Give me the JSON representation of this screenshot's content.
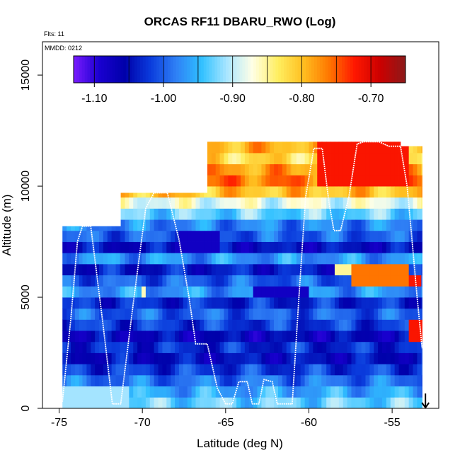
{
  "chart_data": {
    "type": "heatmap",
    "title": "ORCAS RF11 DBARU_RWO (Log)",
    "flights_label": "Flts: 11",
    "date_label": "MMDD: 0212",
    "xlabel": "Latitude (deg N)",
    "ylabel": "Altitude (m)",
    "xlim": [
      -76,
      -52.2
    ],
    "ylim": [
      0,
      16500
    ],
    "x_ticks": [
      -75,
      -70,
      -65,
      -60,
      -55
    ],
    "x_tick_labels": [
      "-75",
      "-70",
      "-65",
      "-60",
      "-55"
    ],
    "y_ticks": [
      0,
      5000,
      10000,
      15000
    ],
    "y_tick_labels": [
      "0",
      "5000",
      "10000",
      "15000"
    ],
    "colorbar": {
      "min": -1.13,
      "max": -0.65,
      "ticks": [
        -1.1,
        -1.0,
        -0.9,
        -0.8,
        -0.7
      ],
      "tick_labels": [
        "-1.10",
        "-1.00",
        "-0.90",
        "-0.80",
        "-0.70"
      ],
      "colors": [
        "#7a1bff",
        "#1a00d0",
        "#0000aa",
        "#0a3bdc",
        "#2f7ff5",
        "#2fc0ff",
        "#a9e6ff",
        "#ffffe6",
        "#ffee60",
        "#ffbf20",
        "#ff7700",
        "#ff1800",
        "#cc0000",
        "#8b1a1a"
      ]
    },
    "arrow_marker_lat": -53,
    "flight_track": [
      [
        -74.8,
        300
      ],
      [
        -74.3,
        4000
      ],
      [
        -73.9,
        7500
      ],
      [
        -73.6,
        8200
      ],
      [
        -73.1,
        8200
      ],
      [
        -72.4,
        4000
      ],
      [
        -71.8,
        200
      ],
      [
        -71.3,
        200
      ],
      [
        -70.5,
        5000
      ],
      [
        -69.8,
        9000
      ],
      [
        -69.3,
        9700
      ],
      [
        -68.5,
        9700
      ],
      [
        -67.8,
        7600
      ],
      [
        -67.2,
        5000
      ],
      [
        -66.8,
        2900
      ],
      [
        -66.1,
        2900
      ],
      [
        -65.5,
        900
      ],
      [
        -65.0,
        200
      ],
      [
        -64.6,
        200
      ],
      [
        -64.2,
        1200
      ],
      [
        -63.7,
        1200
      ],
      [
        -63.4,
        200
      ],
      [
        -63.0,
        200
      ],
      [
        -62.7,
        1300
      ],
      [
        -62.2,
        1200
      ],
      [
        -61.9,
        200
      ],
      [
        -61.4,
        200
      ],
      [
        -61.0,
        200
      ],
      [
        -60.6,
        5000
      ],
      [
        -60.2,
        9500
      ],
      [
        -59.7,
        11700
      ],
      [
        -59.2,
        11700
      ],
      [
        -58.8,
        9300
      ],
      [
        -58.5,
        8000
      ],
      [
        -58.1,
        8000
      ],
      [
        -57.6,
        9500
      ],
      [
        -57.1,
        11900
      ],
      [
        -56.7,
        12000
      ],
      [
        -55.8,
        12000
      ],
      [
        -55.2,
        11800
      ],
      [
        -54.5,
        11800
      ],
      [
        -54.1,
        10000
      ],
      [
        -53.8,
        7500
      ],
      [
        -53.5,
        5000
      ],
      [
        -53.2,
        2700
      ]
    ],
    "profiles": [
      {
        "lat0": -74.8,
        "lat1": -73.6,
        "alt_top": 8200
      },
      {
        "lat0": -73.6,
        "lat1": -71.3,
        "alt_top": 8200
      },
      {
        "lat0": -71.3,
        "lat1": -69.3,
        "alt_top": 9700
      },
      {
        "lat0": -69.3,
        "lat1": -66.1,
        "alt_top": 9700
      },
      {
        "lat0": -66.1,
        "lat1": -61.0,
        "alt_top": 12000
      },
      {
        "lat0": -61.0,
        "lat1": -59.2,
        "alt_top": 12000
      },
      {
        "lat0": -59.2,
        "lat1": -57.1,
        "alt_top": 12000
      },
      {
        "lat0": -57.1,
        "lat1": -54.5,
        "alt_top": 12000
      },
      {
        "lat0": -54.5,
        "lat1": -53.2,
        "alt_top": 11800
      }
    ],
    "layers": [
      {
        "alt0": 0,
        "alt1": 500,
        "value": -0.93
      },
      {
        "alt0": 500,
        "alt1": 1000,
        "value": -0.96
      },
      {
        "alt0": 1000,
        "alt1": 1500,
        "value": -0.99
      },
      {
        "alt0": 1500,
        "alt1": 2000,
        "value": -1.02
      },
      {
        "alt0": 2000,
        "alt1": 2500,
        "value": -1.05
      },
      {
        "alt0": 2500,
        "alt1": 3000,
        "value": -1.03
      },
      {
        "alt0": 3000,
        "alt1": 3500,
        "value": -1.06
      },
      {
        "alt0": 3500,
        "alt1": 4000,
        "value": -1.02
      },
      {
        "alt0": 4000,
        "alt1": 4500,
        "value": -1.0
      },
      {
        "alt0": 4500,
        "alt1": 5000,
        "value": -1.03
      },
      {
        "alt0": 5000,
        "alt1": 5500,
        "value": -0.97
      },
      {
        "alt0": 5500,
        "alt1": 6000,
        "value": -1.0
      },
      {
        "alt0": 6000,
        "alt1": 6500,
        "value": -1.04
      },
      {
        "alt0": 6500,
        "alt1": 7000,
        "value": -0.97
      },
      {
        "alt0": 7000,
        "alt1": 7500,
        "value": -1.05
      },
      {
        "alt0": 7500,
        "alt1": 8000,
        "value": -1.0
      },
      {
        "alt0": 8000,
        "alt1": 8500,
        "value": -0.98
      },
      {
        "alt0": 8500,
        "alt1": 9000,
        "value": -0.93
      },
      {
        "alt0": 9000,
        "alt1": 9500,
        "value": -0.88
      },
      {
        "alt0": 9500,
        "alt1": 10000,
        "value": -0.8
      },
      {
        "alt0": 10000,
        "alt1": 10500,
        "value": -0.76
      },
      {
        "alt0": 10500,
        "alt1": 11000,
        "value": -0.78
      },
      {
        "alt0": 11000,
        "alt1": 11500,
        "value": -0.82
      },
      {
        "alt0": 11500,
        "alt1": 12000,
        "value": -0.79
      }
    ],
    "anomalies": [
      {
        "lat0": -57.5,
        "lat1": -54.2,
        "alt0": 5500,
        "alt1": 6500,
        "value": -0.76
      },
      {
        "lat0": -58.5,
        "lat1": -57.5,
        "alt0": 5800,
        "alt1": 6300,
        "value": -0.85
      },
      {
        "lat0": -59.5,
        "lat1": -54.0,
        "alt0": 10000,
        "alt1": 12000,
        "value": -0.72
      },
      {
        "lat0": -54.0,
        "lat1": -53.2,
        "alt0": 3000,
        "alt1": 3600,
        "value": -0.72
      },
      {
        "lat0": -54.0,
        "lat1": -53.3,
        "alt0": 5500,
        "alt1": 6000,
        "value": -0.72
      },
      {
        "lat0": -70.2,
        "lat1": -69.8,
        "alt0": 5000,
        "alt1": 5400,
        "value": -0.86
      },
      {
        "lat0": -68.0,
        "lat1": -65.5,
        "alt0": 6800,
        "alt1": 7600,
        "value": -1.08
      },
      {
        "lat0": -63.5,
        "lat1": -60.0,
        "alt0": 4700,
        "alt1": 5300,
        "value": -1.08
      },
      {
        "lat0": -74.8,
        "lat1": -71.0,
        "alt0": 0,
        "alt1": 600,
        "value": -0.91
      }
    ]
  }
}
